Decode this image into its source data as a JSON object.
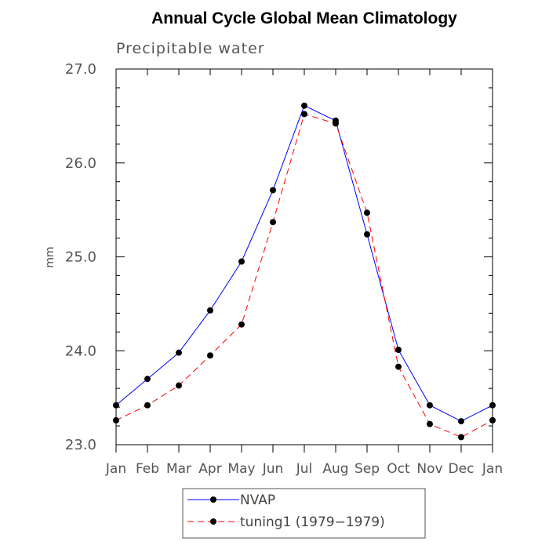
{
  "chart_data": {
    "type": "line",
    "title": "Annual Cycle Global Mean Climatology",
    "subtitle": "Precipitable water",
    "xlabel": "",
    "ylabel": "mm",
    "categories": [
      "Jan",
      "Feb",
      "Mar",
      "Apr",
      "May",
      "Jun",
      "Jul",
      "Aug",
      "Sep",
      "Oct",
      "Nov",
      "Dec",
      "Jan"
    ],
    "ylim": [
      23.0,
      27.0
    ],
    "yticks": [
      "23.0",
      "24.0",
      "25.0",
      "26.0",
      "27.0"
    ],
    "grid": false,
    "legend_position": "bottom-center",
    "series": [
      {
        "name": "NVAP",
        "color": "#0000ff",
        "dash": "solid",
        "values": [
          23.42,
          23.7,
          23.98,
          24.43,
          24.95,
          25.71,
          26.61,
          26.45,
          25.24,
          24.01,
          23.42,
          23.25,
          23.42
        ]
      },
      {
        "name": "tuning1 (1979−1979)",
        "color": "#ff0000",
        "dash": "dashed",
        "values": [
          23.26,
          23.42,
          23.63,
          23.95,
          24.28,
          25.37,
          26.52,
          26.42,
          25.47,
          23.83,
          23.22,
          23.08,
          23.26
        ]
      }
    ]
  }
}
